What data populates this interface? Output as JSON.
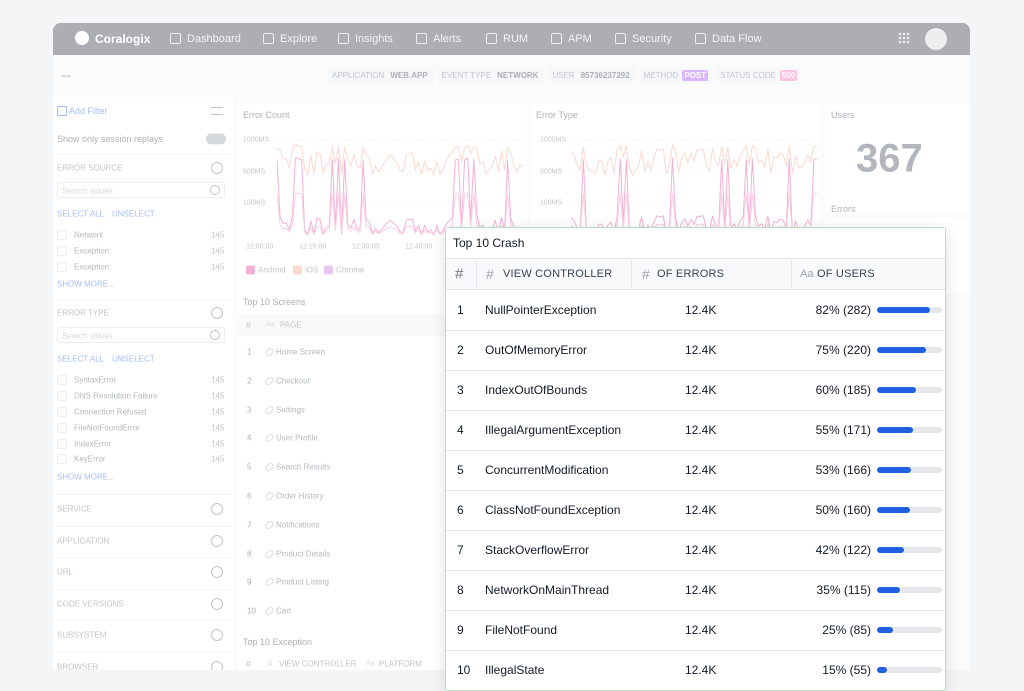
{
  "nav": {
    "brand": "Coralogix",
    "items": [
      "Dashboard",
      "Explore",
      "Insights",
      "Alerts",
      "RUM",
      "APM",
      "Security",
      "Data Flow"
    ]
  },
  "filters": [
    {
      "key": "APPLICATION",
      "value": "WEB.APP"
    },
    {
      "key": "EVENT TYPE",
      "value": "NETWORK"
    },
    {
      "key": "USER",
      "value": "85736237292"
    },
    {
      "key": "METHOD",
      "value": "POST"
    },
    {
      "key": "STATUS CODE",
      "value": "500"
    }
  ],
  "sidebar": {
    "add_filter": "Add Filter",
    "session_toggle": "Show only session replays",
    "groups": [
      {
        "title": "ERROR SOURCE",
        "search": "Search values",
        "select_all": "SELECT ALL",
        "unselect": "UNSELECT",
        "items": [
          {
            "label": "Network",
            "count": 145
          },
          {
            "label": "Exception",
            "count": 145
          },
          {
            "label": "Exception",
            "count": 145
          }
        ],
        "show_more": "SHOW MORE..."
      },
      {
        "title": "ERROR TYPE",
        "search": "Search values",
        "select_all": "SELECT ALL",
        "unselect": "UNSELECT",
        "items": [
          {
            "label": "SyntaxError",
            "count": 145
          },
          {
            "label": "DNS Resolution Failure",
            "count": 145
          },
          {
            "label": "Connection Refused",
            "count": 145
          },
          {
            "label": "FileNotFoundError",
            "count": 145
          },
          {
            "label": "IndexError",
            "count": 145
          },
          {
            "label": "KeyError",
            "count": 145
          }
        ],
        "show_more": "SHOW MORE..."
      }
    ],
    "collapsed": [
      "SERVICE",
      "APPLICATION",
      "URL",
      "CODE VERSIONS",
      "SUBSYSTEM",
      "BROWSER"
    ]
  },
  "panels": {
    "error_count": {
      "title": "Error Count",
      "yticks": [
        "1000MS",
        "500MS",
        "100MS"
      ],
      "xticks": [
        "12:00:00",
        "12:15:00",
        "12:30:00",
        "12:45:00"
      ],
      "legend": [
        "Android",
        "iOS",
        "Chrome"
      ]
    },
    "error_type": {
      "title": "Error Type",
      "yticks": [
        "1000MS",
        "500MS",
        "100MS"
      ]
    },
    "users": {
      "title": "Users",
      "value": 367
    },
    "errors": {
      "title": "Errors"
    },
    "top_screens": {
      "title": "Top 10 Screens",
      "columns": [
        {
          "label": "#"
        },
        {
          "icon": "Aa",
          "label": "PAGE"
        }
      ],
      "rows": [
        {
          "rank": 1,
          "page": "Home Screen"
        },
        {
          "rank": 2,
          "page": "Checkout"
        },
        {
          "rank": 3,
          "page": "Settings"
        },
        {
          "rank": 4,
          "page": "User Profile"
        },
        {
          "rank": 5,
          "page": "Search Results"
        },
        {
          "rank": 6,
          "page": "Order History"
        },
        {
          "rank": 7,
          "page": "Notifications"
        },
        {
          "rank": 8,
          "page": "Product Details"
        },
        {
          "rank": 9,
          "page": "Product Listing"
        },
        {
          "rank": 10,
          "page": "Cart"
        }
      ]
    },
    "top_exception": {
      "title": "Top 10 Exception",
      "columns": [
        {
          "label": "#"
        },
        {
          "icon": "#",
          "label": "VIEW CONTROLLER"
        },
        {
          "icon": "Aa",
          "label": "PLATFORM"
        }
      ]
    }
  },
  "modal": {
    "title": "Top 10 Crash",
    "columns": [
      {
        "label": "#"
      },
      {
        "icon": "#",
        "label": "VIEW CONTROLLER"
      },
      {
        "icon": "#",
        "label": "OF ERRORS"
      },
      {
        "icon": "Aa",
        "label": "OF USERS"
      }
    ],
    "rows": [
      {
        "rank": 1,
        "name": "NullPointerException",
        "errors": "12.4K",
        "users": "82% (282)",
        "share": 82
      },
      {
        "rank": 2,
        "name": "OutOfMemoryError",
        "errors": "12.4K",
        "users": "75% (220)",
        "share": 75
      },
      {
        "rank": 3,
        "name": "IndexOutOfBounds",
        "errors": "12.4K",
        "users": "60% (185)",
        "share": 60
      },
      {
        "rank": 4,
        "name": "IllegalArgumentException",
        "errors": "12.4K",
        "users": "55% (171)",
        "share": 55
      },
      {
        "rank": 5,
        "name": "ConcurrentModification",
        "errors": "12.4K",
        "users": "53% (166)",
        "share": 53
      },
      {
        "rank": 6,
        "name": "ClassNotFoundException",
        "errors": "12.4K",
        "users": "50% (160)",
        "share": 50
      },
      {
        "rank": 7,
        "name": "StackOverflowError",
        "errors": "12.4K",
        "users": "42% (122)",
        "share": 42
      },
      {
        "rank": 8,
        "name": "NetworkOnMainThread",
        "errors": "12.4K",
        "users": "35% (115)",
        "share": 35
      },
      {
        "rank": 9,
        "name": "FileNotFound",
        "errors": "12.4K",
        "users": "25% (85)",
        "share": 25
      },
      {
        "rank": 10,
        "name": "IllegalState",
        "errors": "12.4K",
        "users": "15% (55)",
        "share": 15
      }
    ]
  }
}
